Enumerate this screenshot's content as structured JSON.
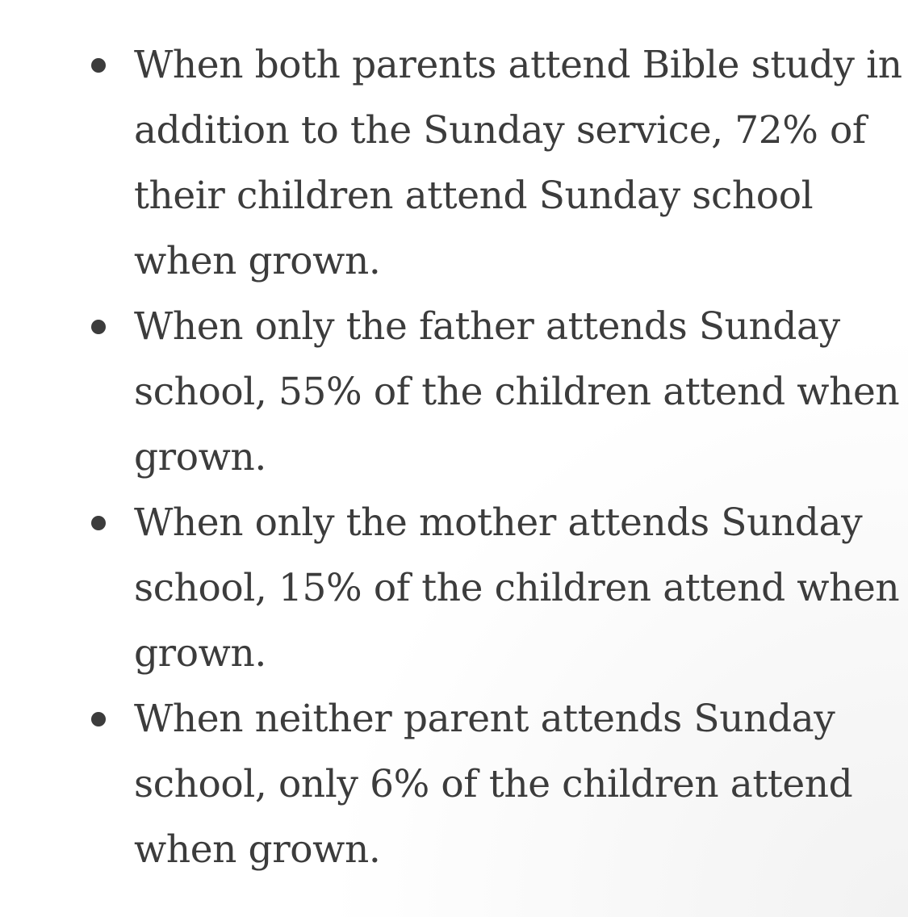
{
  "bullets": [
    {
      "lines": [
        "When both parents attend Bible study in",
        "addition to the Sunday service, 72% of",
        "their children attend Sunday school",
        "when grown."
      ]
    },
    {
      "lines": [
        "When only the father attends Sunday",
        "school, 55% of the children attend when",
        "grown."
      ]
    },
    {
      "lines": [
        "When only the mother attends Sunday",
        "school, 15% of the children attend when",
        "grown."
      ]
    },
    {
      "lines": [
        "When neither parent attends Sunday",
        "school, only 6% of the children attend",
        "when grown."
      ]
    }
  ]
}
